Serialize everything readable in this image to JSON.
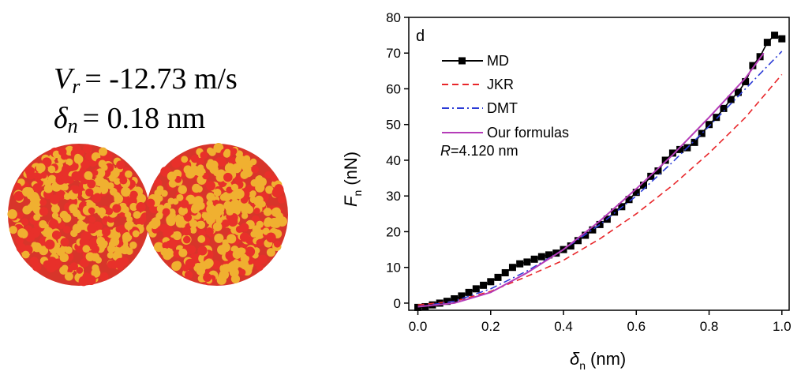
{
  "panel_labels": [
    {
      "symbol": "V",
      "subscript": "r",
      "text": "= -12.73 m/s"
    },
    {
      "symbol": "δ",
      "subscript": "n",
      "text": "= 0.18 nm"
    }
  ],
  "chart_data": {
    "type": "line",
    "panel": "d",
    "x_label": {
      "symbol": "δ",
      "subscript": "n",
      "unit": "(nm)"
    },
    "y_label": {
      "symbol": "F",
      "subscript": "n",
      "unit": "(nN)"
    },
    "annotation": {
      "symbol": "R",
      "text": "=4.120 nm"
    },
    "xlim": [
      -0.025,
      1.02
    ],
    "ylim": [
      -2,
      80
    ],
    "xticks": [
      {
        "value": 0,
        "label": "0.0"
      },
      0.2,
      0.4,
      0.6,
      0.8,
      {
        "value": 1,
        "label": "1.0"
      }
    ],
    "yticks": [
      0,
      10,
      20,
      30,
      40,
      50,
      60,
      70,
      80
    ],
    "series": [
      {
        "name": "MD",
        "color": "#000000",
        "style": "line-square",
        "x": [
          0,
          0.02,
          0.04,
          0.06,
          0.08,
          0.1,
          0.12,
          0.14,
          0.16,
          0.18,
          0.2,
          0.22,
          0.24,
          0.26,
          0.28,
          0.3,
          0.32,
          0.34,
          0.36,
          0.38,
          0.4,
          0.42,
          0.44,
          0.46,
          0.48,
          0.5,
          0.52,
          0.54,
          0.56,
          0.58,
          0.6,
          0.62,
          0.64,
          0.66,
          0.68,
          0.7,
          0.72,
          0.74,
          0.76,
          0.78,
          0.8,
          0.82,
          0.84,
          0.86,
          0.88,
          0.9,
          0.92,
          0.94,
          0.96,
          0.98,
          1.0
        ],
        "values": [
          -1.2,
          -1,
          -0.5,
          0,
          0.5,
          1.2,
          2,
          3,
          4,
          5,
          6,
          7.2,
          8.5,
          10,
          11,
          11.5,
          12.3,
          13,
          13.5,
          14,
          15,
          16,
          17.5,
          19,
          20.5,
          22,
          23.5,
          25.5,
          27,
          29,
          31,
          33,
          35.5,
          37,
          40,
          42,
          43,
          43.5,
          45,
          47.5,
          50,
          52,
          54.5,
          57,
          59,
          62,
          66.5,
          69,
          73,
          75,
          74
        ]
      },
      {
        "name": "JKR",
        "color": "#e8262a",
        "style": "dash",
        "x": [
          0,
          0.1,
          0.2,
          0.3,
          0.4,
          0.5,
          0.6,
          0.7,
          0.8,
          0.9,
          1.0
        ],
        "values": [
          -0.5,
          0.5,
          3.3,
          7.5,
          12,
          18,
          25,
          33,
          42,
          52,
          64
        ]
      },
      {
        "name": "DMT",
        "color": "#2b3bd6",
        "style": "dashdot",
        "x": [
          0,
          0.1,
          0.2,
          0.3,
          0.4,
          0.5,
          0.6,
          0.7,
          0.8,
          0.9,
          1.0
        ],
        "values": [
          -1,
          0.5,
          4,
          9,
          15,
          22,
          30,
          39.5,
          49.5,
          60,
          70.5
        ]
      },
      {
        "name": "Our formulas",
        "color": "#b53cb8",
        "style": "solid",
        "x": [
          0,
          0.1,
          0.2,
          0.3,
          0.4,
          0.5,
          0.6,
          0.7,
          0.8,
          0.9,
          0.95
        ],
        "values": [
          -1,
          0,
          3,
          8.5,
          15,
          23,
          32,
          41.5,
          52,
          63,
          70
        ]
      }
    ]
  }
}
